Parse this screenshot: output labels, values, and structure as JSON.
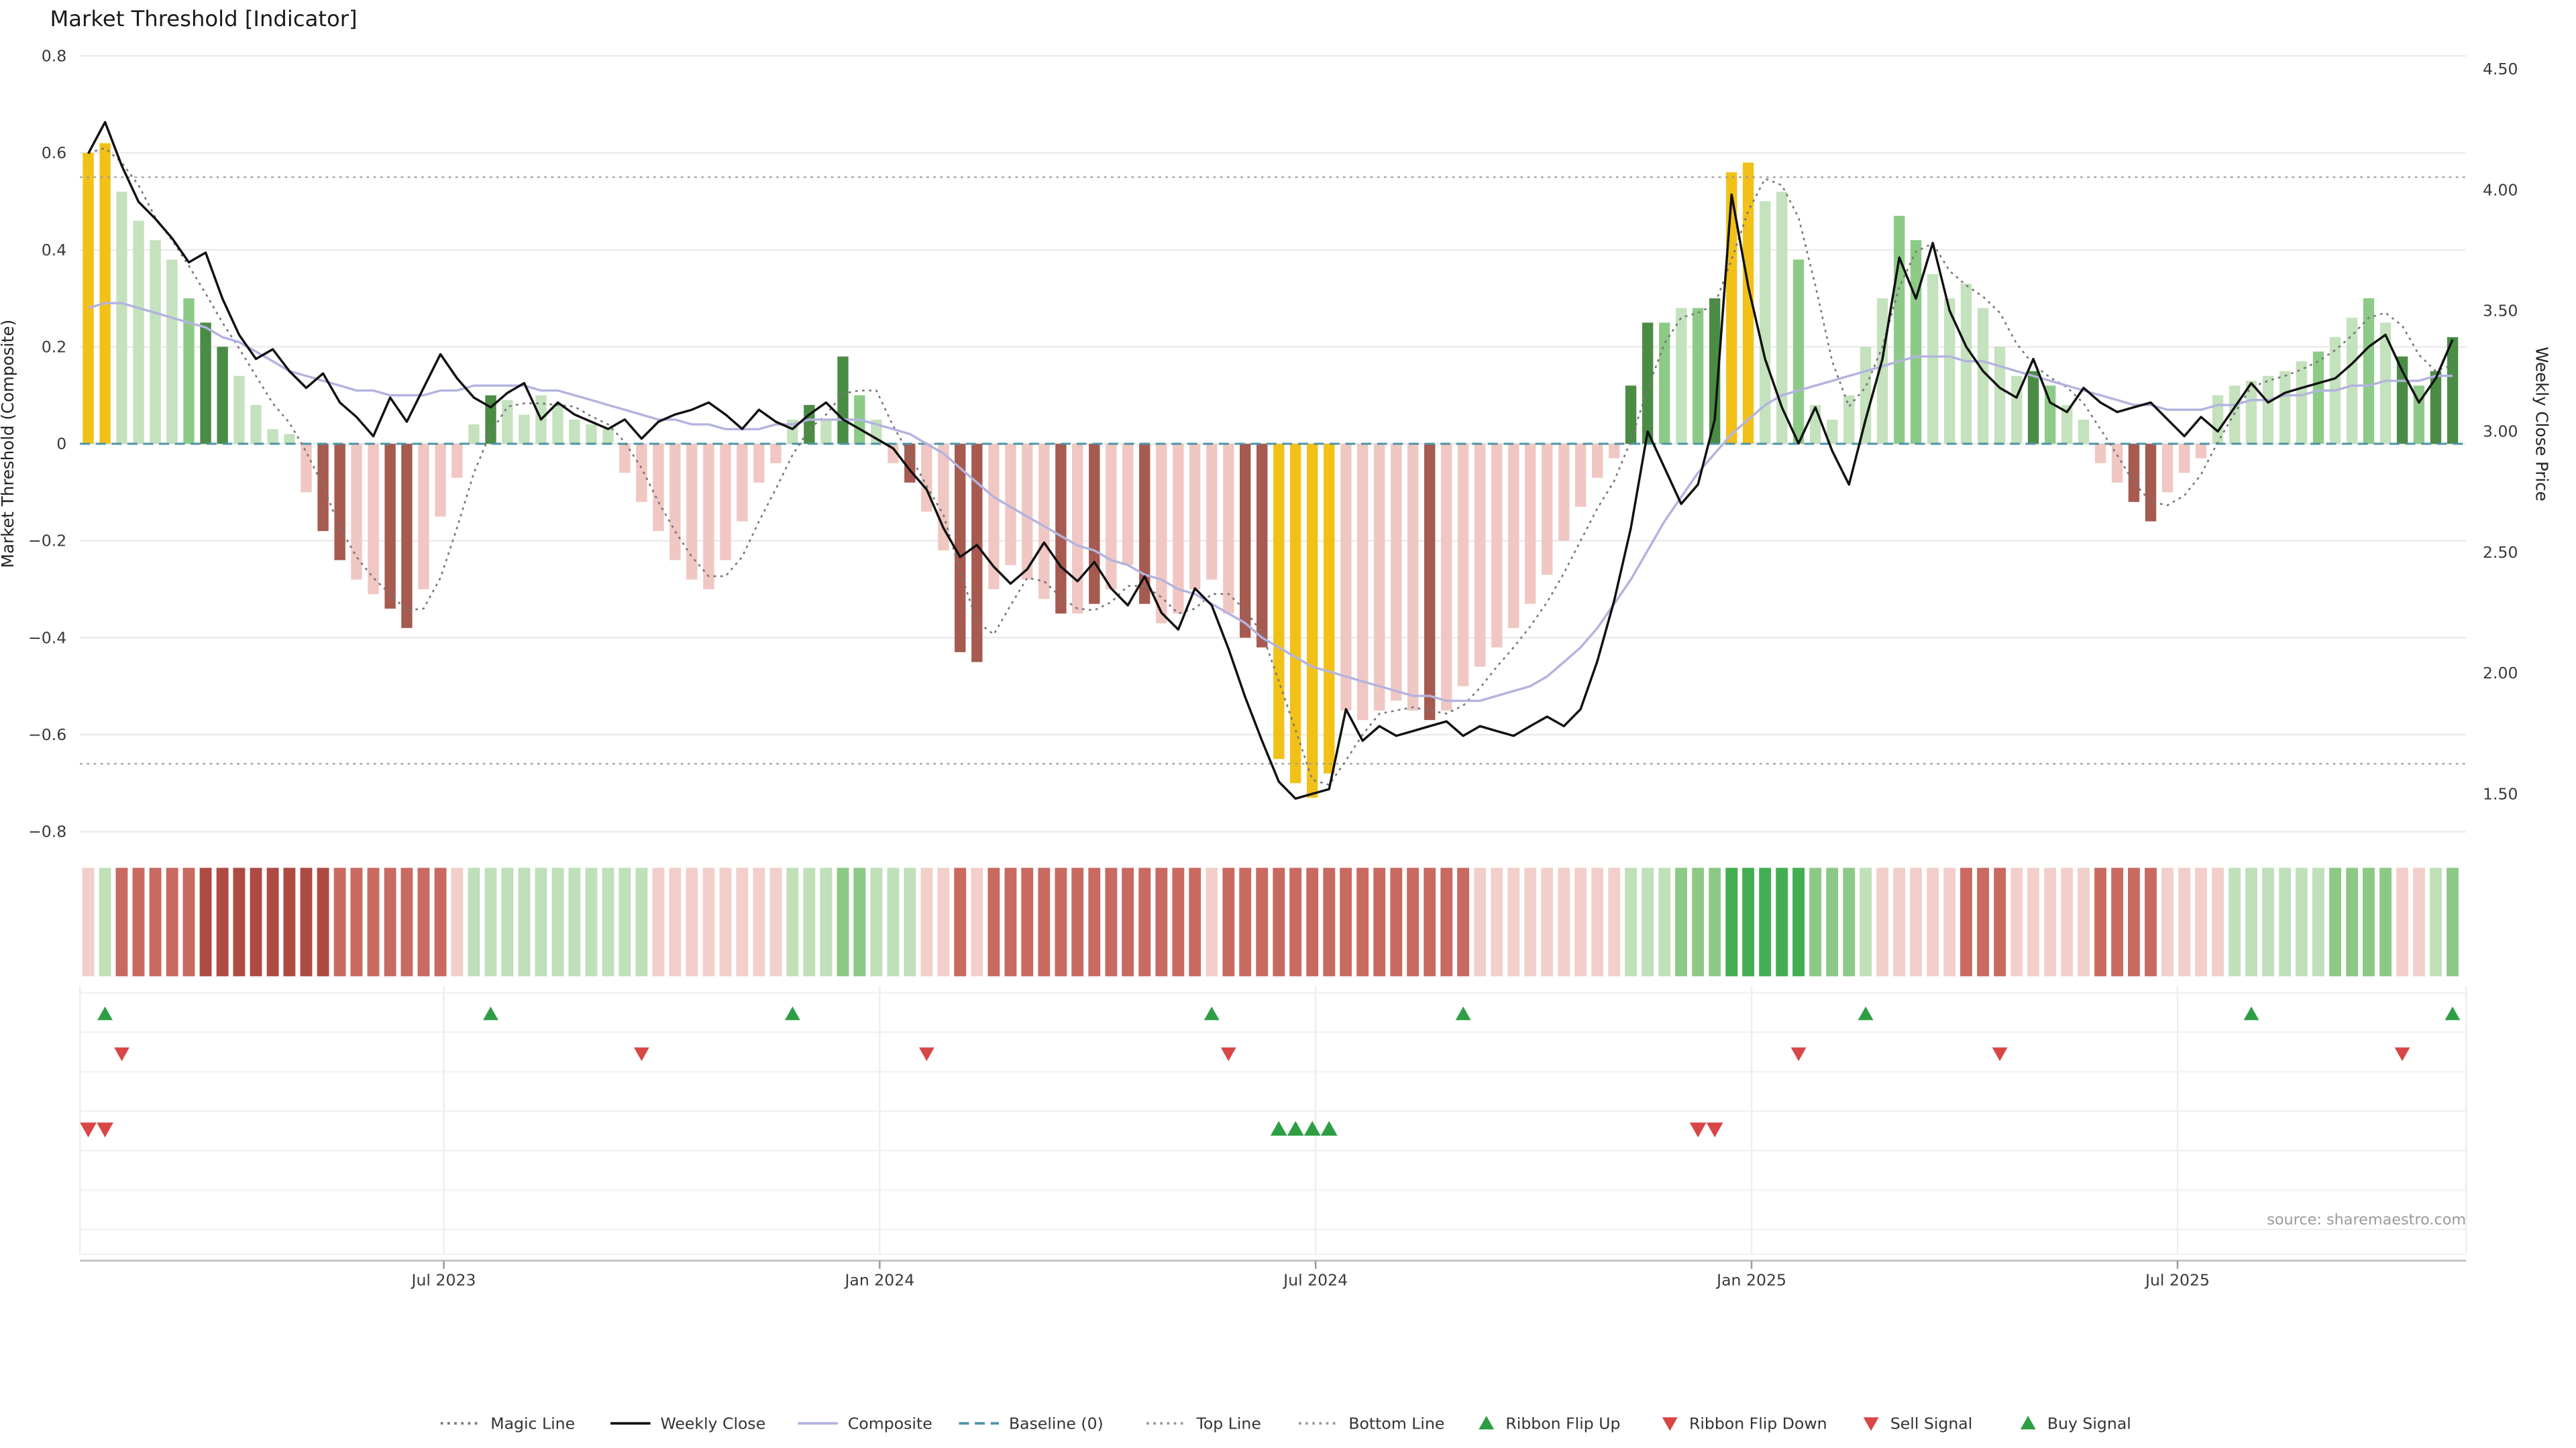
{
  "title": "Market Threshold [Indicator]",
  "source": "source: sharemaestro.com",
  "axes": {
    "left_label": "Market Threshold (Composite)",
    "right_label": "Weekly Close Price",
    "left_ticks": [
      {
        "v": 0.8,
        "label": "0.8"
      },
      {
        "v": 0.6,
        "label": "0.6"
      },
      {
        "v": 0.4,
        "label": "0.4"
      },
      {
        "v": 0.2,
        "label": "0.2"
      },
      {
        "v": 0,
        "label": "0"
      },
      {
        "v": -0.2,
        "label": "−0.2"
      },
      {
        "v": -0.4,
        "label": "−0.4"
      },
      {
        "v": -0.6,
        "label": "−0.6"
      },
      {
        "v": -0.8,
        "label": "−0.8"
      }
    ],
    "right_ticks": [
      {
        "v": 4.5,
        "label": "4.50"
      },
      {
        "v": 4.0,
        "label": "4.00"
      },
      {
        "v": 3.5,
        "label": "3.50"
      },
      {
        "v": 3.0,
        "label": "3.00"
      },
      {
        "v": 2.5,
        "label": "2.50"
      },
      {
        "v": 2.0,
        "label": "2.00"
      },
      {
        "v": 1.5,
        "label": "1.50"
      }
    ],
    "x_ticks": [
      {
        "label": "Jul 2023",
        "week": 21.2
      },
      {
        "label": "Jan 2024",
        "week": 47.2
      },
      {
        "label": "Jul 2024",
        "week": 73.2
      },
      {
        "label": "Jan 2025",
        "week": 99.2
      },
      {
        "label": "Jul 2025",
        "week": 124.6
      }
    ]
  },
  "colors": {
    "bar_colors": {
      "gold": "#f2c118",
      "g1": "#c4e2bd",
      "g2": "#8eca87",
      "g3": "#4b8c45",
      "r1": "#f0c7c2",
      "r2": "#d99790",
      "r3": "#a65a50"
    },
    "ribbon_colors": {
      "rl": "#f2cfca",
      "rm": "#c96a60",
      "rd": "#ad4b42",
      "gl": "#bfe0b9",
      "gm": "#8cc986",
      "gd": "#43ad52"
    },
    "line_colors": {
      "weekly_close": "#111111",
      "composite": "#b3b3e0",
      "magic": "#777777",
      "baseline": "#4c93a8",
      "top_bottom": "#999999"
    },
    "signal_colors": {
      "up": "#2e9e44",
      "down": "#d94646"
    },
    "grid": "#ebebeb"
  },
  "chart_data": {
    "type": "bar",
    "description": "Weekly composite threshold bars (left axis) with weekly close price, composite and magic lines, color ribbon and signal rows",
    "weeks": 142,
    "ylim_left": [
      -0.8,
      0.8
    ],
    "ylim_right": [
      1.5,
      4.5
    ],
    "top_line": 0.55,
    "bottom_line": -0.66,
    "baseline": 0,
    "bars": {
      "values": [
        0.6,
        0.62,
        0.52,
        0.46,
        0.42,
        0.38,
        0.3,
        0.25,
        0.2,
        0.14,
        0.08,
        0.03,
        0.02,
        -0.1,
        -0.18,
        -0.24,
        -0.28,
        -0.31,
        -0.34,
        -0.38,
        -0.3,
        -0.15,
        -0.07,
        0.04,
        0.1,
        0.09,
        0.06,
        0.1,
        0.08,
        0.05,
        0.04,
        0.03,
        -0.06,
        -0.12,
        -0.18,
        -0.24,
        -0.28,
        -0.3,
        -0.24,
        -0.16,
        -0.08,
        -0.04,
        0.05,
        0.08,
        0.05,
        0.18,
        0.1,
        0.05,
        -0.04,
        -0.08,
        -0.14,
        -0.22,
        -0.43,
        -0.45,
        -0.3,
        -0.25,
        -0.28,
        -0.32,
        -0.35,
        -0.35,
        -0.33,
        -0.3,
        -0.25,
        -0.33,
        -0.37,
        -0.35,
        -0.3,
        -0.28,
        -0.35,
        -0.4,
        -0.42,
        -0.65,
        -0.7,
        -0.73,
        -0.68,
        -0.55,
        -0.57,
        -0.55,
        -0.53,
        -0.55,
        -0.57,
        -0.55,
        -0.5,
        -0.46,
        -0.42,
        -0.38,
        -0.33,
        -0.27,
        -0.2,
        -0.13,
        -0.07,
        -0.03,
        0.12,
        0.25,
        0.25,
        0.28,
        0.28,
        0.3,
        0.56,
        0.58,
        0.5,
        0.52,
        0.38,
        0.08,
        0.05,
        0.1,
        0.2,
        0.3,
        0.47,
        0.42,
        0.35,
        0.3,
        0.33,
        0.28,
        0.2,
        0.14,
        0.15,
        0.12,
        0.08,
        0.05,
        -0.04,
        -0.08,
        -0.12,
        -0.16,
        -0.1,
        -0.06,
        -0.03,
        0.1,
        0.12,
        0.13,
        0.14,
        0.15,
        0.17,
        0.19,
        0.22,
        0.26,
        0.3,
        0.25,
        0.18,
        0.12,
        0.15,
        0.22
      ],
      "colors": [
        "gold",
        "gold",
        "g1",
        "g1",
        "g1",
        "g1",
        "g2",
        "g3",
        "g3",
        "g1",
        "g1",
        "g1",
        "g1",
        "r1",
        "r3",
        "r3",
        "r1",
        "r1",
        "r3",
        "r3",
        "r1",
        "r1",
        "r1",
        "g1",
        "g3",
        "g1",
        "g1",
        "g1",
        "g1",
        "g1",
        "g1",
        "g1",
        "r1",
        "r1",
        "r1",
        "r1",
        "r1",
        "r1",
        "r1",
        "r1",
        "r1",
        "r1",
        "g1",
        "g3",
        "g1",
        "g3",
        "g2",
        "g1",
        "r1",
        "r3",
        "r1",
        "r1",
        "r3",
        "r3",
        "r1",
        "r1",
        "r1",
        "r1",
        "r3",
        "r1",
        "r3",
        "r1",
        "r1",
        "r3",
        "r1",
        "r1",
        "r1",
        "r1",
        "r1",
        "r3",
        "r3",
        "gold",
        "gold",
        "gold",
        "gold",
        "r1",
        "r1",
        "r1",
        "r1",
        "r1",
        "r3",
        "r1",
        "r1",
        "r1",
        "r1",
        "r1",
        "r1",
        "r1",
        "r1",
        "r1",
        "r1",
        "r1",
        "g3",
        "g3",
        "g2",
        "g1",
        "g2",
        "g3",
        "gold",
        "gold",
        "g1",
        "g1",
        "g2",
        "g1",
        "g1",
        "g1",
        "g1",
        "g1",
        "g2",
        "g2",
        "g1",
        "g1",
        "g1",
        "g1",
        "g1",
        "g1",
        "g3",
        "g2",
        "g1",
        "g1",
        "r1",
        "r1",
        "r3",
        "r3",
        "r1",
        "r1",
        "r1",
        "g1",
        "g1",
        "g1",
        "g1",
        "g1",
        "g1",
        "g2",
        "g1",
        "g1",
        "g2",
        "g1",
        "g3",
        "g2",
        "g3",
        "g3"
      ]
    },
    "weekly_close": [
      4.15,
      4.28,
      4.1,
      3.95,
      3.88,
      3.8,
      3.7,
      3.74,
      3.55,
      3.4,
      3.3,
      3.34,
      3.25,
      3.18,
      3.24,
      3.12,
      3.06,
      2.98,
      3.14,
      3.04,
      3.18,
      3.32,
      3.22,
      3.14,
      3.1,
      3.16,
      3.2,
      3.05,
      3.12,
      3.07,
      3.04,
      3.01,
      3.05,
      2.97,
      3.04,
      3.07,
      3.09,
      3.12,
      3.07,
      3.01,
      3.09,
      3.04,
      3.01,
      3.07,
      3.12,
      3.05,
      3.01,
      2.97,
      2.93,
      2.84,
      2.76,
      2.6,
      2.48,
      2.53,
      2.44,
      2.37,
      2.43,
      2.54,
      2.44,
      2.38,
      2.46,
      2.35,
      2.28,
      2.4,
      2.25,
      2.18,
      2.35,
      2.28,
      2.1,
      1.9,
      1.72,
      1.55,
      1.48,
      1.5,
      1.52,
      1.85,
      1.72,
      1.78,
      1.74,
      1.76,
      1.78,
      1.8,
      1.74,
      1.78,
      1.76,
      1.74,
      1.78,
      1.82,
      1.78,
      1.85,
      2.05,
      2.3,
      2.6,
      3.0,
      2.85,
      2.7,
      2.78,
      3.05,
      3.98,
      3.6,
      3.3,
      3.1,
      2.95,
      3.1,
      2.92,
      2.78,
      3.05,
      3.3,
      3.72,
      3.55,
      3.78,
      3.5,
      3.35,
      3.25,
      3.18,
      3.14,
      3.3,
      3.12,
      3.08,
      3.18,
      3.12,
      3.08,
      3.1,
      3.12,
      3.05,
      2.98,
      3.06,
      3.0,
      3.1,
      3.2,
      3.12,
      3.16,
      3.18,
      3.2,
      3.22,
      3.28,
      3.35,
      3.4,
      3.25,
      3.12,
      3.22,
      3.38
    ],
    "composite_line": [
      0.28,
      0.29,
      0.29,
      0.28,
      0.27,
      0.26,
      0.25,
      0.24,
      0.22,
      0.21,
      0.19,
      0.17,
      0.15,
      0.14,
      0.13,
      0.12,
      0.11,
      0.11,
      0.1,
      0.1,
      0.1,
      0.11,
      0.11,
      0.12,
      0.12,
      0.12,
      0.12,
      0.11,
      0.11,
      0.1,
      0.09,
      0.08,
      0.07,
      0.06,
      0.05,
      0.05,
      0.04,
      0.04,
      0.03,
      0.03,
      0.03,
      0.04,
      0.04,
      0.05,
      0.05,
      0.05,
      0.05,
      0.04,
      0.03,
      0.02,
      0.0,
      -0.02,
      -0.05,
      -0.08,
      -0.11,
      -0.13,
      -0.15,
      -0.17,
      -0.19,
      -0.21,
      -0.22,
      -0.24,
      -0.25,
      -0.27,
      -0.28,
      -0.3,
      -0.31,
      -0.33,
      -0.35,
      -0.37,
      -0.4,
      -0.42,
      -0.44,
      -0.46,
      -0.47,
      -0.48,
      -0.49,
      -0.5,
      -0.51,
      -0.52,
      -0.52,
      -0.53,
      -0.53,
      -0.53,
      -0.52,
      -0.51,
      -0.5,
      -0.48,
      -0.45,
      -0.42,
      -0.38,
      -0.33,
      -0.28,
      -0.22,
      -0.16,
      -0.11,
      -0.06,
      -0.02,
      0.02,
      0.05,
      0.08,
      0.1,
      0.11,
      0.12,
      0.13,
      0.14,
      0.15,
      0.16,
      0.17,
      0.18,
      0.18,
      0.18,
      0.17,
      0.17,
      0.16,
      0.15,
      0.14,
      0.13,
      0.12,
      0.11,
      0.1,
      0.09,
      0.08,
      0.08,
      0.07,
      0.07,
      0.07,
      0.08,
      0.08,
      0.09,
      0.09,
      0.1,
      0.1,
      0.11,
      0.11,
      0.12,
      0.12,
      0.13,
      0.13,
      0.13,
      0.14,
      0.14
    ],
    "magic_line": {
      "derived_from": "bars",
      "smoothing_window": 3
    },
    "ribbon": [
      "rl",
      "gl",
      "rm",
      "rm",
      "rm",
      "rm",
      "rm",
      "rd",
      "rd",
      "rd",
      "rd",
      "rd",
      "rd",
      "rd",
      "rd",
      "rm",
      "rm",
      "rm",
      "rm",
      "rm",
      "rm",
      "rm",
      "rl",
      "gl",
      "gl",
      "gl",
      "gl",
      "gl",
      "gl",
      "gl",
      "gl",
      "gl",
      "gl",
      "gl",
      "rl",
      "rl",
      "rl",
      "rl",
      "rl",
      "rl",
      "rl",
      "rl",
      "gl",
      "gl",
      "gl",
      "gm",
      "gm",
      "gl",
      "gl",
      "gl",
      "rl",
      "rl",
      "rm",
      "rl",
      "rm",
      "rm",
      "rm",
      "rm",
      "rm",
      "rm",
      "rm",
      "rm",
      "rm",
      "rm",
      "rm",
      "rm",
      "rm",
      "rl",
      "rm",
      "rm",
      "rm",
      "rm",
      "rm",
      "rm",
      "rm",
      "rm",
      "rm",
      "rm",
      "rm",
      "rm",
      "rm",
      "rm",
      "rm",
      "rl",
      "rl",
      "rl",
      "rl",
      "rl",
      "rl",
      "rl",
      "rl",
      "rl",
      "gl",
      "gl",
      "gl",
      "gm",
      "gm",
      "gm",
      "gd",
      "gd",
      "gd",
      "gd",
      "gd",
      "gm",
      "gm",
      "gm",
      "gl",
      "rl",
      "rl",
      "rl",
      "rl",
      "rl",
      "rm",
      "rm",
      "rm",
      "rl",
      "rl",
      "rl",
      "rl",
      "rl",
      "rm",
      "rm",
      "rm",
      "rm",
      "rl",
      "rl",
      "rl",
      "rl",
      "gl",
      "gl",
      "gl",
      "gl",
      "gl",
      "gl",
      "gm",
      "gm",
      "gm",
      "gm",
      "rl",
      "rl",
      "gl",
      "gm"
    ],
    "signals": {
      "ribbon_flip_up_weeks": [
        1,
        24,
        42,
        67,
        82,
        106,
        129,
        141
      ],
      "ribbon_flip_down_weeks": [
        2,
        33,
        50,
        68,
        102,
        114,
        138
      ],
      "sell_signal_weeks": [
        0,
        1,
        96,
        97
      ],
      "buy_signal_weeks": [
        71,
        72,
        73,
        74
      ]
    }
  },
  "legend": [
    {
      "label": "Magic Line",
      "glyph": "dotted-line",
      "color": "#777777"
    },
    {
      "label": "Weekly Close",
      "glyph": "solid-line",
      "color": "#111111"
    },
    {
      "label": "Composite",
      "glyph": "solid-line",
      "color": "#b3b3e0"
    },
    {
      "label": "Baseline (0)",
      "glyph": "dashed-line",
      "color": "#4c93a8"
    },
    {
      "label": "Top Line",
      "glyph": "dotted-line",
      "color": "#999999"
    },
    {
      "label": "Bottom Line",
      "glyph": "dotted-line",
      "color": "#999999"
    },
    {
      "label": "Ribbon Flip Up",
      "glyph": "triangle-up",
      "color": "#2e9e44"
    },
    {
      "label": "Ribbon Flip Down",
      "glyph": "triangle-down",
      "color": "#d94646"
    },
    {
      "label": "Sell Signal",
      "glyph": "triangle-down",
      "color": "#d94646"
    },
    {
      "label": "Buy Signal",
      "glyph": "triangle-up",
      "color": "#2e9e44"
    }
  ]
}
